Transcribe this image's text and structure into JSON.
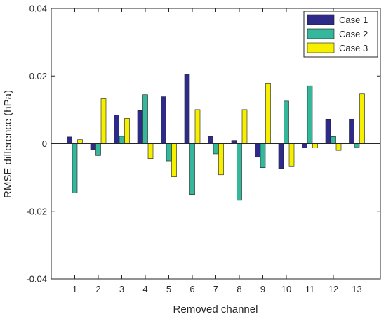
{
  "chart_data": {
    "type": "bar",
    "title": "",
    "xlabel": "Removed channel",
    "ylabel": "RMSE difference (hPa)",
    "ylim": [
      -0.04,
      0.04
    ],
    "yticks": [
      -0.04,
      -0.02,
      0,
      0.02,
      0.04
    ],
    "ytick_labels": [
      "-0.04",
      "-0.02",
      "0",
      "0.02",
      "0.04"
    ],
    "categories": [
      "1",
      "2",
      "3",
      "4",
      "5",
      "6",
      "7",
      "8",
      "9",
      "10",
      "11",
      "12",
      "13"
    ],
    "grid": false,
    "legend_position": "top-right",
    "series": [
      {
        "name": "Case 1",
        "color": "#2e2a8a",
        "values": [
          0.002,
          -0.0018,
          0.0085,
          0.0098,
          0.0139,
          0.0205,
          0.0021,
          0.001,
          -0.004,
          -0.0074,
          -0.0012,
          0.0071,
          0.0072
        ]
      },
      {
        "name": "Case 2",
        "color": "#35b79b",
        "values": [
          -0.0145,
          -0.0035,
          0.0022,
          0.0145,
          -0.0051,
          -0.015,
          -0.003,
          -0.0167,
          -0.0071,
          0.0126,
          0.0171,
          0.0021,
          -0.001
        ]
      },
      {
        "name": "Case 3",
        "color": "#f6f000",
        "values": [
          0.0012,
          0.0133,
          0.0075,
          -0.0044,
          -0.0098,
          0.0101,
          -0.0092,
          0.0101,
          0.0179,
          -0.0066,
          -0.0012,
          -0.002,
          0.0147
        ]
      }
    ]
  }
}
